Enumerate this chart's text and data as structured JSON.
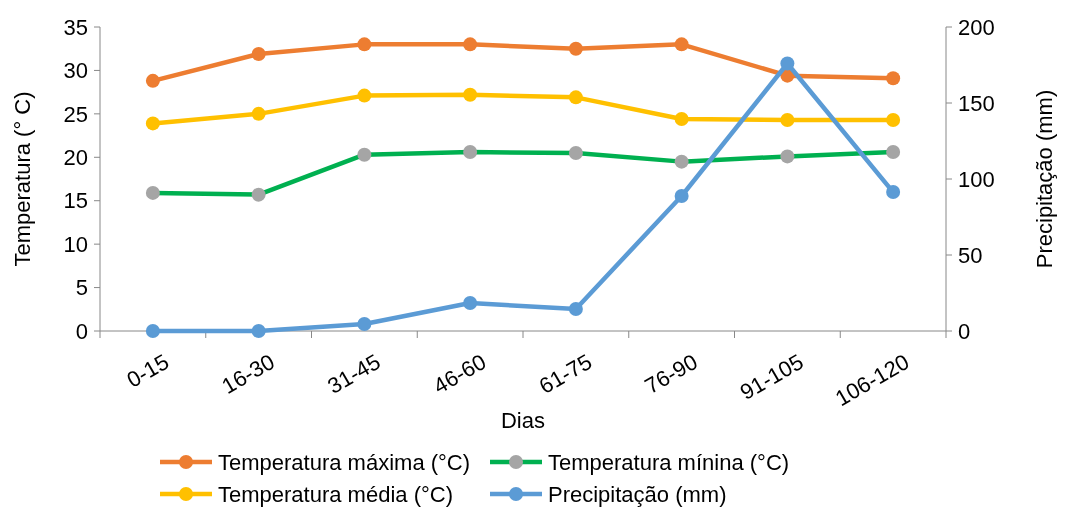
{
  "chart_data": {
    "type": "line",
    "xlabel": "Dias",
    "ylabel": "Temperatura (° C)",
    "y2label": "Precipitação (mm)",
    "categories": [
      "0-15",
      "16-30",
      "31-45",
      "46-60",
      "61-75",
      "76-90",
      "91-105",
      "106-120"
    ],
    "ylim": [
      0,
      35
    ],
    "yticks": [
      0,
      5,
      10,
      15,
      20,
      25,
      30,
      35
    ],
    "y2lim": [
      0,
      200
    ],
    "y2ticks": [
      0,
      50,
      100,
      150,
      200
    ],
    "grid": false,
    "legend": "bottom",
    "marker": "circle",
    "line_style": "solid",
    "series": [
      {
        "name": "Temperatura máxima (°C)",
        "color": "#ed7d31",
        "values": [
          28.8,
          31.9,
          33.0,
          33.0,
          32.5,
          33.0,
          29.4,
          29.1
        ]
      },
      {
        "name": "Temperatura mínina (°C)",
        "color": "#00b050",
        "colors": [
          "#a5a5a5",
          "#a5a5a5",
          "#a5a5a5",
          "#a5a5a5",
          "#a5a5a5",
          "#a5a5a5",
          "#a5a5a5",
          "#a5a5a5"
        ],
        "values": [
          15.9,
          15.7,
          20.3,
          20.6,
          20.5,
          19.5,
          20.1,
          20.6
        ]
      },
      {
        "name": "Temperatura média (°C)",
        "color": "#ffc000",
        "values": [
          23.9,
          25.0,
          27.1,
          27.2,
          26.9,
          24.4,
          24.3,
          24.3
        ]
      },
      {
        "name": "Precipitação (mm)",
        "color": "#5b9bd5",
        "axis": "y2",
        "values": [
          0,
          0,
          4.6,
          18.4,
          14.5,
          88.8,
          176,
          91.4
        ]
      }
    ]
  }
}
